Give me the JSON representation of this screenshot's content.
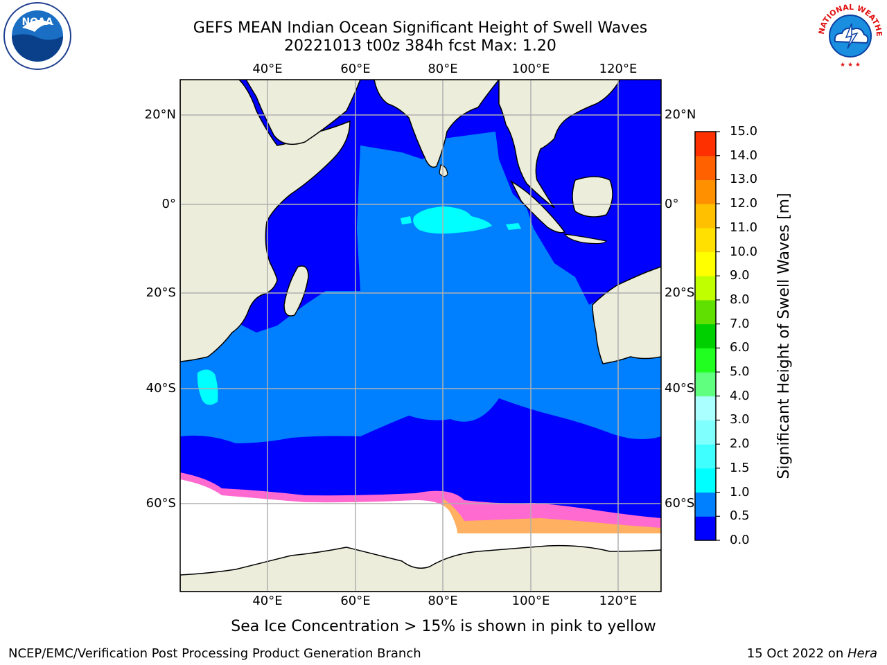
{
  "header": {
    "title_line1": "GEFS MEAN Indian Ocean Significant Height of Swell Waves",
    "title_line2": "20221013 t00z 384h fcst   Max: 1.20"
  },
  "logos": {
    "left": {
      "icon": "noaa-logo-icon",
      "text": "NOAA"
    },
    "right": {
      "icon": "national-weather-service-logo-icon",
      "text": "NATIONAL WEATHER SERVICE"
    }
  },
  "map": {
    "lon_labels": [
      "40°E",
      "60°E",
      "80°E",
      "100°E",
      "120°E"
    ],
    "lat_labels": [
      "20°N",
      "0°",
      "20°S",
      "40°S",
      "60°S"
    ],
    "extent": {
      "lon": [
        20,
        130
      ],
      "lat": [
        -75,
        28
      ]
    },
    "colors": {
      "land": "#ededdc",
      "sea_ice": "#ffffff",
      "grid": "#b0b0b0"
    }
  },
  "colorbar": {
    "label": "Significant Height of Swell Waves [m]",
    "ticks": [
      "0.0",
      "0.5",
      "1.0",
      "1.5",
      "2.0",
      "3.0",
      "4.0",
      "5.0",
      "6.0",
      "7.0",
      "8.0",
      "9.0",
      "10.0",
      "11.0",
      "12.0",
      "13.0",
      "14.0",
      "15.0"
    ],
    "colors": [
      "#0000ff",
      "#0080ff",
      "#00ffff",
      "#40ffff",
      "#80ffff",
      "#aaffff",
      "#60ff80",
      "#20ff20",
      "#00d000",
      "#60e000",
      "#c0ff00",
      "#ffff00",
      "#ffe000",
      "#ffc000",
      "#ff9000",
      "#ff6000",
      "#ff3000",
      "#ff0000"
    ]
  },
  "note": "Sea Ice Concentration > 15% is shown in pink to yellow",
  "footer": {
    "left": "NCEP/EMC/Verification Post Processing Product Generation Branch",
    "date": "15 Oct 2022",
    "on": " on ",
    "machine": "Hera"
  }
}
